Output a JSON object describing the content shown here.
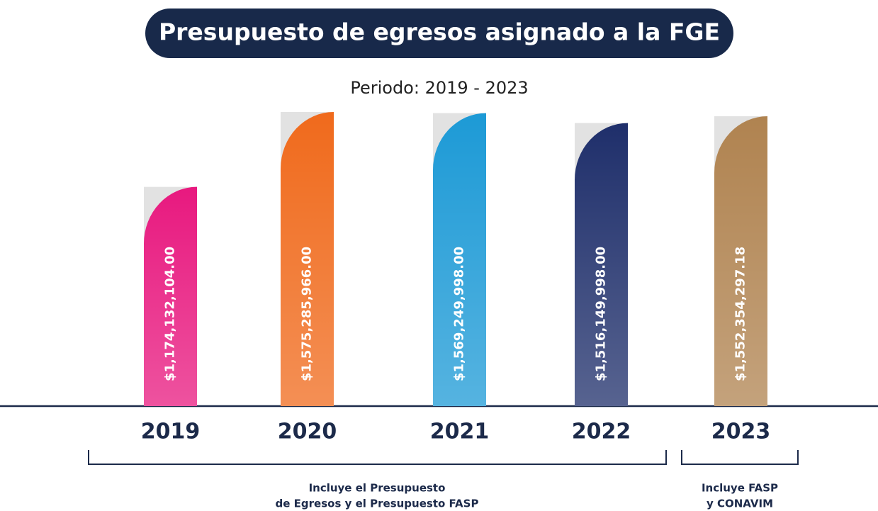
{
  "chart_data": {
    "type": "bar",
    "title": "Presupuesto de egresos asignado a la FGE",
    "subtitle": "Periodo: 2019 - 2023",
    "categories": [
      "2019",
      "2020",
      "2021",
      "2022",
      "2023"
    ],
    "values": [
      1174132104.0,
      1575285966.0,
      1569249998.0,
      1516149998.0,
      1552354297.18
    ],
    "value_labels": [
      "$1,174,132,104.00",
      "$1,575,285,966.00",
      "$1,569,249,998.00",
      "$1,516,149,998.00",
      "$1,552,354,297.18"
    ],
    "colors": [
      "#e8197f",
      "#f06a1c",
      "#1d9ad6",
      "#1f2f6b",
      "#b08350"
    ],
    "annotations": [
      {
        "lines": [
          "Incluye el Presupuesto",
          "de Egresos y el Presupuesto FASP"
        ]
      },
      {
        "lines": [
          "Incluye FASP",
          "y CONAVIM"
        ]
      }
    ]
  }
}
